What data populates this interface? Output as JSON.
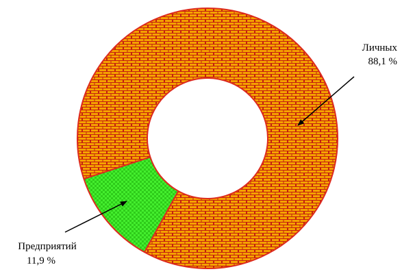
{
  "chart_data": {
    "type": "pie",
    "variant": "donut",
    "categories": [
      "Личных",
      "Предприятий"
    ],
    "values": [
      88.1,
      11.9
    ],
    "data_labels": [
      "88,1 %",
      "11,9 %"
    ],
    "colors": {
      "Личных": "#f5a300",
      "Предприятий": "#44ee2e",
      "outline": "#dd2a1e",
      "pattern_line": "#c41f10",
      "checker": "#2ecc1a"
    },
    "patterns": {
      "Личных": "brick",
      "Предприятий": "checkerboard"
    },
    "legend": "none"
  }
}
